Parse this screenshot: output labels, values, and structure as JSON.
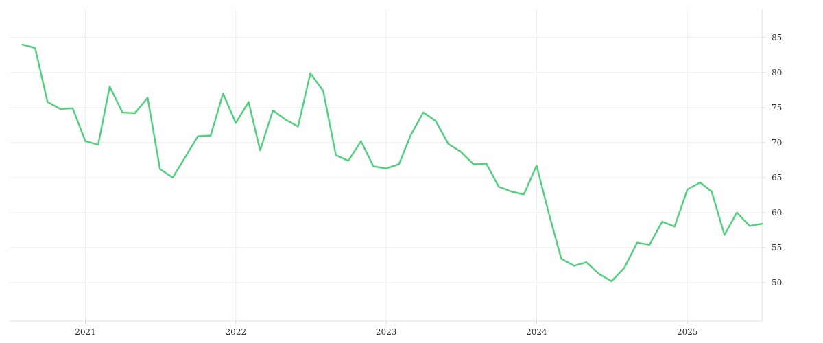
{
  "chart_data": {
    "type": "line",
    "title": "",
    "xlabel": "",
    "ylabel": "",
    "x_axis": {
      "type": "date",
      "range": [
        "2020-07-01",
        "2025-07-01"
      ],
      "ticks": [
        {
          "value": "2021-01-01",
          "label": "2021"
        },
        {
          "value": "2022-01-01",
          "label": "2022"
        },
        {
          "value": "2023-01-01",
          "label": "2023"
        },
        {
          "value": "2024-01-01",
          "label": "2024"
        },
        {
          "value": "2025-01-01",
          "label": "2025"
        }
      ]
    },
    "y_axis": {
      "position": "right",
      "range": [
        44.5,
        89
      ],
      "ticks": [
        50,
        55,
        60,
        65,
        70,
        75,
        80,
        85
      ]
    },
    "grid": true,
    "line_color": "#52d07e",
    "series": [
      {
        "x": [
          "2020-08-01",
          "2020-09-01",
          "2020-10-01",
          "2020-11-01",
          "2020-12-01",
          "2021-01-01",
          "2021-02-01",
          "2021-03-01",
          "2021-04-01",
          "2021-05-01",
          "2021-06-01",
          "2021-07-01",
          "2021-08-01",
          "2021-09-01",
          "2021-10-01",
          "2021-11-01",
          "2021-12-01",
          "2022-01-01",
          "2022-02-01",
          "2022-03-01",
          "2022-04-01",
          "2022-05-01",
          "2022-06-01",
          "2022-07-01",
          "2022-08-01",
          "2022-09-01",
          "2022-10-01",
          "2022-11-01",
          "2022-12-01",
          "2023-01-01",
          "2023-02-01",
          "2023-03-01",
          "2023-04-01",
          "2023-05-01",
          "2023-06-01",
          "2023-07-01",
          "2023-08-01",
          "2023-09-01",
          "2023-10-01",
          "2023-11-01",
          "2023-12-01",
          "2024-01-01",
          "2024-02-01",
          "2024-03-01",
          "2024-04-01",
          "2024-05-01",
          "2024-06-01",
          "2024-07-01",
          "2024-08-01",
          "2024-09-01",
          "2024-10-01",
          "2024-11-01",
          "2024-12-01",
          "2025-01-01",
          "2025-02-01",
          "2025-03-01",
          "2025-04-01",
          "2025-05-01",
          "2025-06-01",
          "2025-07-01"
        ],
        "y": [
          84.0,
          83.5,
          75.8,
          74.8,
          74.9,
          70.2,
          69.7,
          78.0,
          74.3,
          74.2,
          76.4,
          66.2,
          65.0,
          68.0,
          70.9,
          71.0,
          77.0,
          72.8,
          75.8,
          68.9,
          74.6,
          73.3,
          72.3,
          79.9,
          77.4,
          68.2,
          67.4,
          70.2,
          66.6,
          66.3,
          66.9,
          71.0,
          74.3,
          73.1,
          69.8,
          68.7,
          66.9,
          67.0,
          63.7,
          63.0,
          62.6,
          66.7,
          59.6,
          53.4,
          52.4,
          52.9,
          51.2,
          50.2,
          52.1,
          55.7,
          55.4,
          58.7,
          58.0,
          63.3,
          64.3,
          63.0,
          56.8,
          60.0,
          58.1,
          58.4
        ]
      }
    ]
  }
}
